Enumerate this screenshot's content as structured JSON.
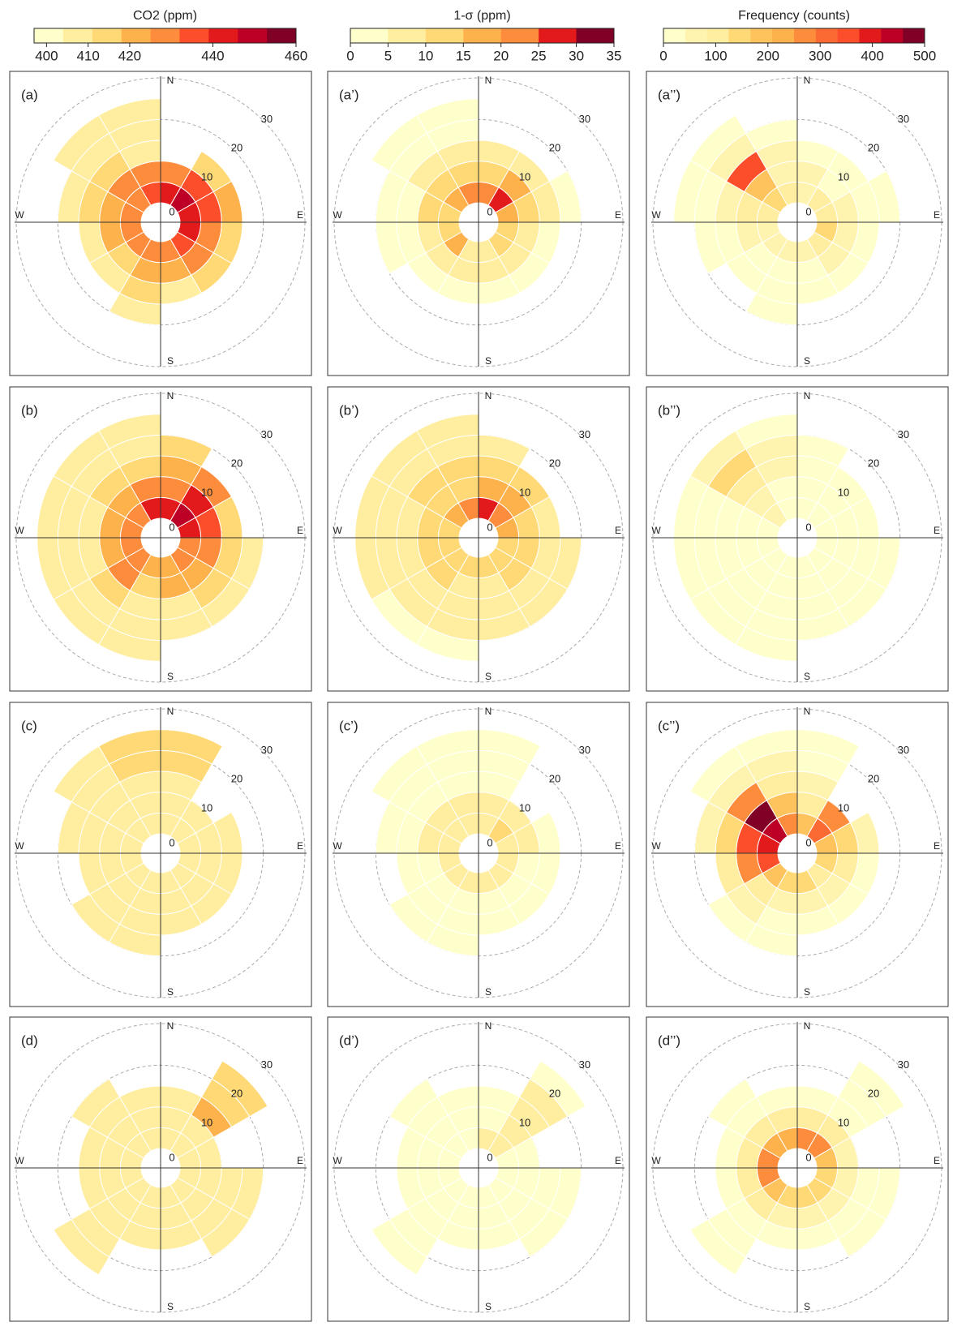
{
  "chart_data": [
    {
      "type": "polar-heatmap",
      "colorbar_title": "CO2 (ppm)",
      "clim": [
        397,
        460
      ],
      "cticks": [
        400,
        410,
        420,
        440,
        460
      ],
      "colors": [
        "#ffffcc",
        "#ffeda0",
        "#fed976",
        "#feb24c",
        "#fd8d3c",
        "#fc4e2a",
        "#e31a1c",
        "#bd0026",
        "#800026"
      ],
      "directions": [
        "N",
        "E",
        "S",
        "W"
      ],
      "rticks": [
        0,
        10,
        20,
        30
      ],
      "rlim": [
        0,
        30
      ],
      "panels": [
        {
          "label": "(a)",
          "values": [
            [
              445,
              450,
              445,
              440,
              435,
              430,
              425,
              430,
              425,
              430,
              430,
              435
            ],
            [
              430,
              435,
              435,
              430,
              425,
              420,
              420,
              415,
              420,
              420,
              425,
              425
            ],
            [
              null,
              415,
              420,
              415,
              412,
              410,
              412,
              408,
              410,
              415,
              412,
              410
            ],
            [
              null,
              null,
              null,
              null,
              null,
              null,
              405,
              null,
              null,
              410,
              408,
              407
            ],
            [
              null,
              null,
              null,
              null,
              null,
              null,
              null,
              null,
              null,
              null,
              405,
              406
            ]
          ]
        },
        {
          "label": "(b)",
          "values": [
            [
              440,
              450,
              445,
              430,
              425,
              420,
              420,
              430,
              425,
              425,
              430,
              440
            ],
            [
              430,
              440,
              435,
              425,
              420,
              418,
              415,
              425,
              420,
              418,
              420,
              425
            ],
            [
              420,
              425,
              415,
              415,
              412,
              410,
              410,
              415,
              410,
              410,
              412,
              415
            ],
            [
              415,
              null,
              null,
              410,
              408,
              406,
              406,
              408,
              406,
              408,
              410,
              410
            ],
            [
              null,
              null,
              null,
              null,
              null,
              null,
              405,
              405,
              406,
              406,
              408,
              408
            ]
          ]
        },
        {
          "label": "(c)",
          "values": [
            [
              410,
              410,
              408,
              408,
              407,
              407,
              407,
              408,
              408,
              410,
              410,
              410
            ],
            [
              408,
              408,
              406,
              405,
              405,
              405,
              405,
              406,
              407,
              408,
              408,
              408
            ],
            [
              410,
              null,
              405,
              405,
              404,
              404,
              405,
              406,
              407,
              408,
              408,
              410
            ],
            [
              412,
              null,
              null,
              null,
              null,
              null,
              407,
              408,
              null,
              410,
              410,
              412
            ],
            [
              411,
              null,
              null,
              null,
              null,
              null,
              null,
              null,
              null,
              null,
              410,
              411
            ]
          ]
        },
        {
          "label": "(d)",
          "values": [
            [
              406,
              408,
              406,
              405,
              405,
              405,
              405,
              406,
              407,
              407,
              406,
              406
            ],
            [
              406,
              410,
              406,
              405,
              405,
              405,
              406,
              406,
              406,
              406,
              406,
              406
            ],
            [
              406,
              418,
              null,
              406,
              408,
              406,
              406,
              408,
              406,
              406,
              406,
              406
            ],
            [
              null,
              415,
              null,
              408,
              408,
              null,
              null,
              410,
              null,
              null,
              407,
              null
            ],
            [
              null,
              412,
              null,
              null,
              null,
              null,
              null,
              410,
              null,
              null,
              null,
              null
            ]
          ]
        }
      ]
    },
    {
      "type": "polar-heatmap",
      "colorbar_title": "1-σ (ppm)",
      "clim": [
        0,
        35
      ],
      "cticks": [
        0,
        5,
        10,
        15,
        20,
        25,
        30,
        35
      ],
      "colors": [
        "#ffffcc",
        "#ffeda0",
        "#fed976",
        "#feb24c",
        "#fd8d3c",
        "#e31a1c",
        "#800026"
      ],
      "directions": [
        "N",
        "E",
        "S",
        "W"
      ],
      "rticks": [
        0,
        10,
        20,
        30
      ],
      "rlim": [
        0,
        30
      ],
      "panels": [
        {
          "label": "(a’)",
          "values": [
            [
              20,
              25,
              18,
              12,
              10,
              8,
              8,
              15,
              10,
              12,
              15,
              20
            ],
            [
              12,
              15,
              10,
              8,
              6,
              6,
              5,
              6,
              8,
              10,
              10,
              12
            ],
            [
              5,
              8,
              5,
              3,
              3,
              3,
              2,
              2,
              3,
              4,
              5,
              5
            ],
            [
              null,
              null,
              2,
              null,
              null,
              null,
              null,
              null,
              2,
              3,
              3,
              2
            ],
            [
              null,
              null,
              null,
              null,
              null,
              null,
              null,
              null,
              null,
              null,
              1,
              1
            ]
          ]
        },
        {
          "label": "(b’)",
          "values": [
            [
              25,
              20,
              15,
              12,
              10,
              10,
              12,
              10,
              10,
              12,
              15,
              20
            ],
            [
              15,
              15,
              12,
              10,
              10,
              8,
              8,
              10,
              10,
              10,
              12,
              12
            ],
            [
              12,
              10,
              8,
              8,
              8,
              6,
              6,
              8,
              8,
              8,
              10,
              10
            ],
            [
              8,
              null,
              null,
              6,
              5,
              5,
              5,
              6,
              5,
              6,
              8,
              8
            ],
            [
              null,
              null,
              null,
              null,
              null,
              null,
              4,
              4,
              5,
              5,
              6,
              6
            ]
          ]
        },
        {
          "label": "(c’)",
          "values": [
            [
              8,
              12,
              6,
              5,
              5,
              5,
              5,
              5,
              5,
              6,
              6,
              8
            ],
            [
              5,
              8,
              5,
              4,
              4,
              4,
              4,
              4,
              4,
              5,
              5,
              5
            ],
            [
              4,
              null,
              3,
              3,
              2,
              2,
              3,
              3,
              3,
              4,
              4,
              4
            ],
            [
              3,
              null,
              null,
              null,
              null,
              null,
              2,
              2,
              null,
              3,
              3,
              3
            ],
            [
              2,
              null,
              null,
              null,
              null,
              null,
              null,
              null,
              null,
              null,
              2,
              2
            ]
          ]
        },
        {
          "label": "(d’)",
          "values": [
            [
              5,
              8,
              4,
              3,
              3,
              3,
              3,
              3,
              3,
              4,
              4,
              4
            ],
            [
              4,
              7,
              3,
              3,
              3,
              3,
              3,
              3,
              3,
              3,
              3,
              3
            ],
            [
              3,
              8,
              null,
              2,
              2,
              2,
              2,
              2,
              2,
              2,
              2,
              3
            ],
            [
              null,
              5,
              null,
              2,
              2,
              null,
              null,
              2,
              null,
              null,
              2,
              null
            ],
            [
              null,
              3,
              null,
              null,
              null,
              null,
              null,
              2,
              null,
              null,
              null,
              null
            ]
          ]
        }
      ]
    },
    {
      "type": "polar-heatmap",
      "colorbar_title": "Frequency (counts)",
      "clim": [
        0,
        500
      ],
      "cticks": [
        0,
        100,
        200,
        300,
        400,
        500
      ],
      "colors": [
        "#ffffcc",
        "#fff3b0",
        "#ffeda0",
        "#fed976",
        "#fec35c",
        "#feb24c",
        "#fd8d3c",
        "#fc6a33",
        "#fc4e2a",
        "#e31a1c",
        "#bd0026",
        "#800026"
      ],
      "directions": [
        "N",
        "E",
        "S",
        "W"
      ],
      "rticks": [
        0,
        10,
        20,
        30
      ],
      "rlim": [
        0,
        30
      ],
      "panels": [
        {
          "label": "(a’’)",
          "values": [
            [
              80,
              100,
              120,
              150,
              100,
              80,
              60,
              60,
              80,
              120,
              150,
              100
            ],
            [
              60,
              40,
              50,
              80,
              50,
              40,
              40,
              40,
              60,
              100,
              200,
              80
            ],
            [
              20,
              20,
              30,
              40,
              20,
              20,
              20,
              20,
              30,
              60,
              350,
              60
            ],
            [
              null,
              null,
              10,
              null,
              null,
              null,
              10,
              null,
              10,
              20,
              50,
              20
            ],
            [
              null,
              null,
              null,
              null,
              null,
              null,
              null,
              null,
              null,
              10,
              10,
              null
            ]
          ]
        },
        {
          "label": "(b’’)",
          "values": [
            [
              30,
              20,
              20,
              30,
              30,
              30,
              30,
              30,
              40,
              40,
              50,
              40
            ],
            [
              30,
              20,
              20,
              30,
              30,
              30,
              30,
              30,
              40,
              40,
              60,
              40
            ],
            [
              40,
              20,
              15,
              30,
              40,
              30,
              30,
              30,
              40,
              40,
              120,
              60
            ],
            [
              30,
              null,
              null,
              20,
              20,
              20,
              20,
              20,
              30,
              40,
              150,
              60
            ],
            [
              null,
              null,
              null,
              null,
              null,
              null,
              10,
              10,
              20,
              30,
              50,
              30
            ]
          ]
        },
        {
          "label": "(c’’)",
          "values": [
            [
              200,
              300,
              200,
              150,
              120,
              150,
              150,
              200,
              350,
              400,
              450,
              250
            ],
            [
              100,
              250,
              150,
              100,
              80,
              80,
              80,
              120,
              250,
              350,
              480,
              200
            ],
            [
              60,
              null,
              50,
              40,
              30,
              30,
              40,
              60,
              100,
              150,
              250,
              100
            ],
            [
              30,
              null,
              null,
              null,
              null,
              null,
              20,
              30,
              null,
              50,
              80,
              50
            ],
            [
              20,
              null,
              null,
              null,
              null,
              null,
              null,
              null,
              null,
              null,
              30,
              20
            ]
          ]
        },
        {
          "label": "(d’’)",
          "values": [
            [
              250,
              250,
              200,
              150,
              150,
              150,
              150,
              200,
              250,
              250,
              220,
              220
            ],
            [
              120,
              100,
              80,
              80,
              60,
              60,
              80,
              100,
              120,
              120,
              100,
              100
            ],
            [
              40,
              40,
              null,
              30,
              30,
              30,
              30,
              40,
              40,
              40,
              40,
              40
            ],
            [
              null,
              30,
              null,
              20,
              20,
              null,
              null,
              20,
              null,
              null,
              20,
              null
            ],
            [
              null,
              20,
              null,
              null,
              null,
              null,
              null,
              15,
              null,
              null,
              null,
              null
            ]
          ]
        }
      ]
    }
  ]
}
